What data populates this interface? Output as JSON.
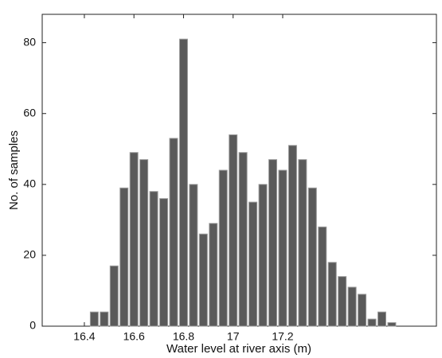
{
  "chart_data": {
    "type": "histogram",
    "xlabel": "Water level at river axis (m)",
    "ylabel": "No. of samples",
    "bins": [
      16.42,
      16.46,
      16.5,
      16.54,
      16.58,
      16.62,
      16.66,
      16.7,
      16.74,
      16.78,
      16.82,
      16.86,
      16.9,
      16.94,
      16.98,
      17.02,
      17.06,
      17.1,
      17.14,
      17.18,
      17.22,
      17.26,
      17.3,
      17.34,
      17.38,
      17.42,
      17.46,
      17.5,
      17.54,
      17.58,
      17.62,
      17.66
    ],
    "values": [
      4,
      4,
      17,
      39,
      49,
      47,
      38,
      36,
      53,
      81,
      40,
      26,
      29,
      44,
      54,
      49,
      35,
      40,
      47,
      44,
      51,
      47,
      39,
      28,
      18,
      14,
      11,
      9,
      2,
      4,
      1
    ],
    "color": "#5a5a5a",
    "xlim": [
      16.23,
      17.82
    ],
    "xticks": [
      16.4,
      16.6,
      16.8,
      17,
      17.2
    ],
    "ylim": [
      0,
      88
    ],
    "yticks": [
      0,
      20,
      40,
      60,
      80
    ],
    "grid": false
  }
}
